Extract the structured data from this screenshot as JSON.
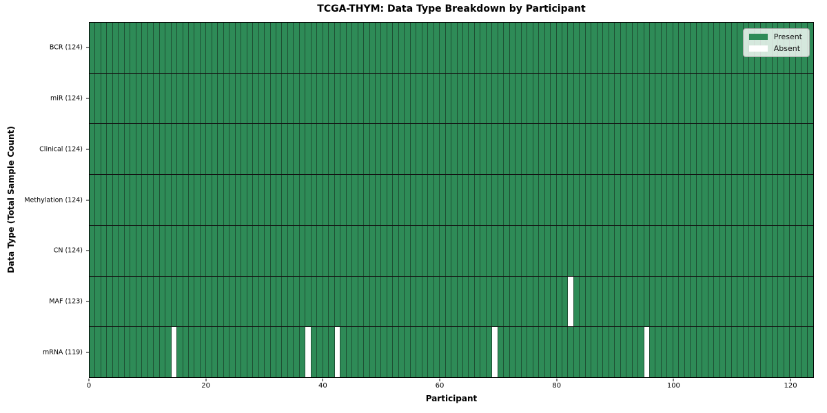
{
  "chart_data": {
    "type": "heatmap",
    "title": "TCGA-THYM: Data Type Breakdown by Participant",
    "xlabel": "Participant",
    "ylabel": "Data Type (Total Sample Count)",
    "n_participants": 124,
    "xlim": [
      0,
      124
    ],
    "x_ticks": [
      0,
      20,
      40,
      60,
      80,
      100,
      120
    ],
    "rows": [
      {
        "label": "BCR (124)",
        "data_type": "BCR",
        "present_count": 124,
        "absent_participants": []
      },
      {
        "label": "miR (124)",
        "data_type": "miR",
        "present_count": 124,
        "absent_participants": []
      },
      {
        "label": "Clinical (124)",
        "data_type": "Clinical",
        "present_count": 124,
        "absent_participants": []
      },
      {
        "label": "Methylation (124)",
        "data_type": "Methylation",
        "present_count": 124,
        "absent_participants": []
      },
      {
        "label": "CN (124)",
        "data_type": "CN",
        "present_count": 124,
        "absent_participants": []
      },
      {
        "label": "MAF (123)",
        "data_type": "MAF",
        "present_count": 123,
        "absent_participants": [
          82
        ]
      },
      {
        "label": "mRNA (119)",
        "data_type": "mRNA",
        "present_count": 119,
        "absent_participants": [
          14,
          37,
          42,
          69,
          95
        ]
      }
    ],
    "legend": {
      "position": "upper right",
      "entries": [
        {
          "label": "Present",
          "color": "#2e8b57"
        },
        {
          "label": "Absent",
          "color": "#ffffff"
        }
      ]
    },
    "colors": {
      "present": "#2e8b57",
      "absent": "#ffffff",
      "cell_edge": "#1e4f33",
      "row_separator": "#131313",
      "plot_border": "#000000",
      "legend_border": "#aaaaaa"
    }
  }
}
